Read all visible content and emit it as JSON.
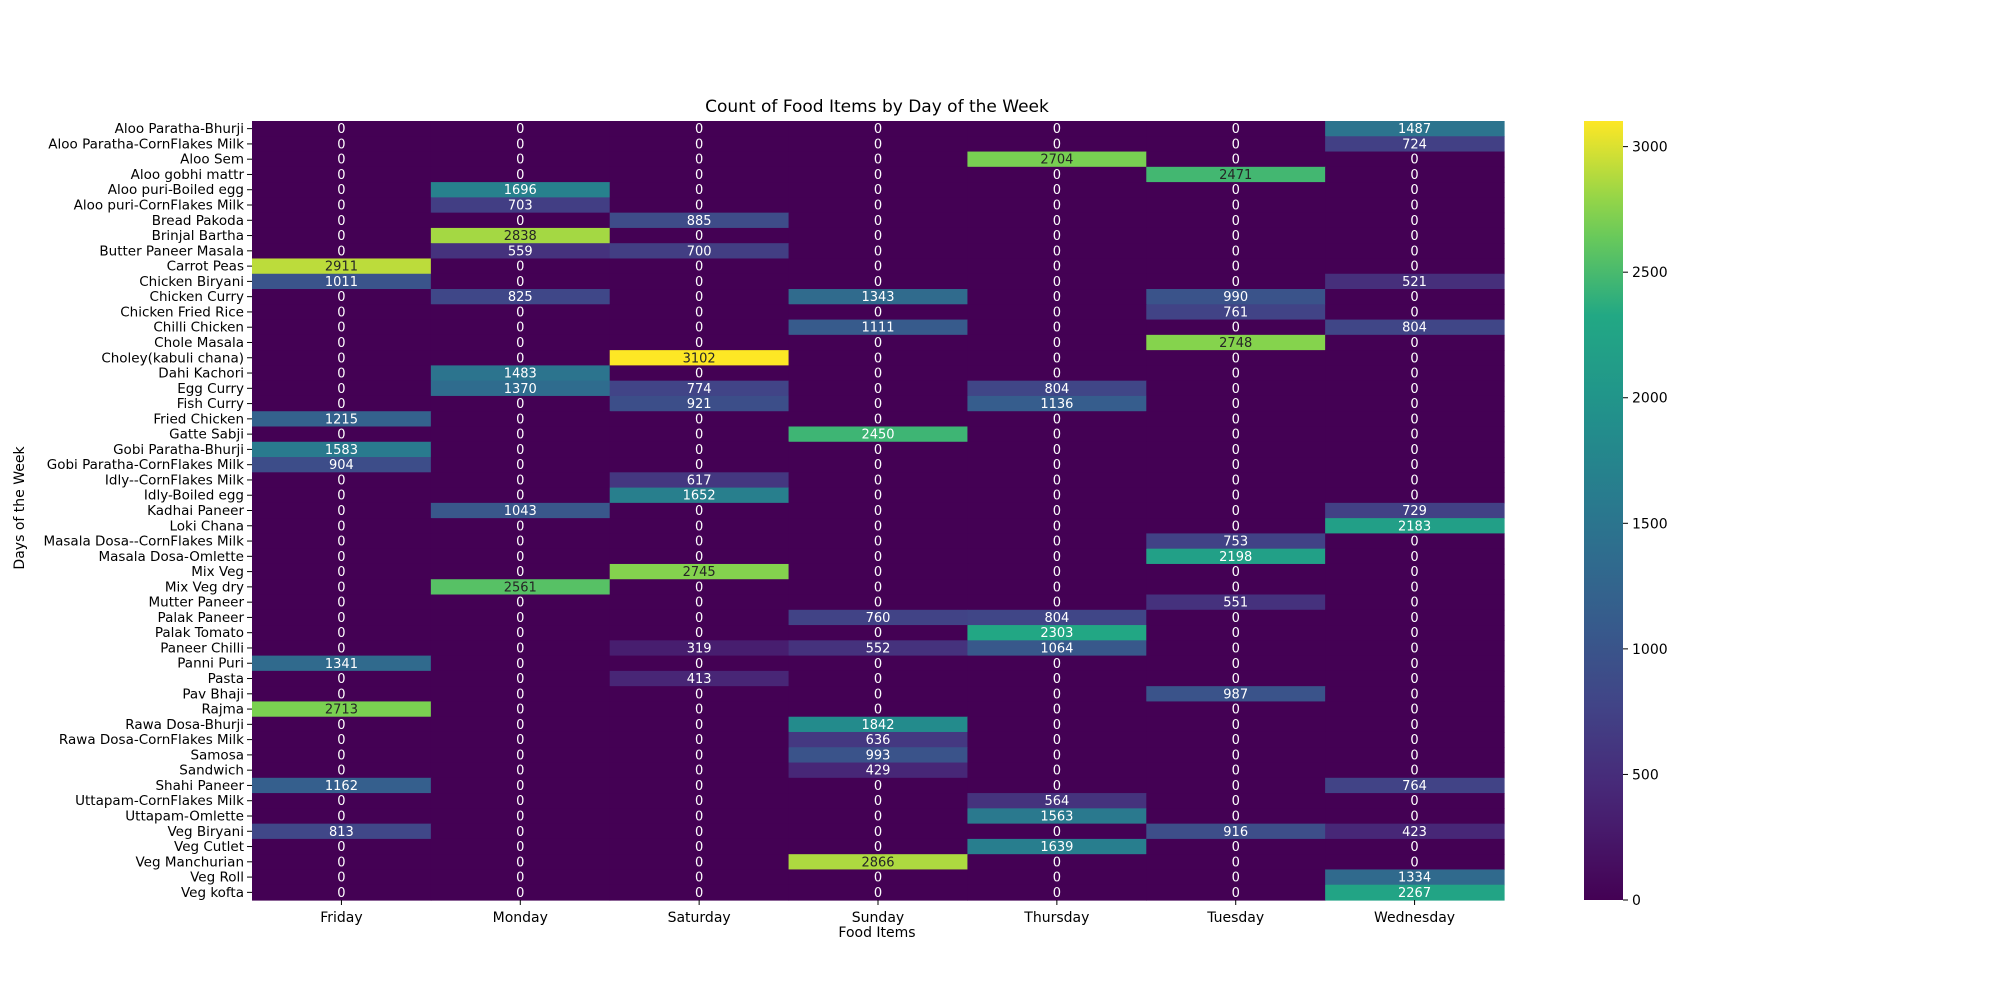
{
  "chart_data": {
    "type": "heatmap",
    "title": "Count of Food Items by Day of the Week",
    "xlabel": "Food Items",
    "ylabel": "Days of the Week",
    "colormap": "viridis",
    "vmin": 0,
    "vmax": 3102,
    "colorbar_ticks": [
      0,
      500,
      1000,
      1500,
      2000,
      2500,
      3000
    ],
    "x_categories": [
      "Friday",
      "Monday",
      "Saturday",
      "Sunday",
      "Thursday",
      "Tuesday",
      "Wednesday"
    ],
    "y_categories": [
      "Aloo Paratha-Bhurji",
      "Aloo Paratha-CornFlakes Milk",
      "Aloo Sem",
      "Aloo gobhi mattr",
      "Aloo puri-Boiled egg",
      "Aloo puri-CornFlakes Milk",
      "Bread Pakoda",
      "Brinjal Bartha",
      "Butter Paneer Masala",
      "Carrot Peas",
      "Chicken Biryani",
      "Chicken Curry",
      "Chicken Fried Rice",
      "Chilli Chicken",
      "Chole Masala",
      "Choley(kabuli chana)",
      "Dahi Kachori",
      "Egg Curry",
      "Fish Curry",
      "Fried Chicken",
      "Gatte Sabji",
      "Gobi Paratha-Bhurji",
      "Gobi Paratha-CornFlakes Milk",
      "Idly--CornFlakes Milk",
      "Idly-Boiled egg",
      "Kadhai Paneer",
      "Loki Chana",
      "Masala Dosa--CornFlakes Milk",
      "Masala Dosa-Omlette",
      "Mix Veg",
      "Mix Veg dry",
      "Mutter Paneer",
      "Palak Paneer",
      "Palak Tomato",
      "Paneer Chilli",
      "Panni Puri",
      "Pasta",
      "Pav Bhaji",
      "Rajma",
      "Rawa Dosa-Bhurji",
      "Rawa Dosa-CornFlakes Milk",
      "Samosa",
      "Sandwich",
      "Shahi Paneer",
      "Uttapam-CornFlakes Milk",
      "Uttapam-Omlette",
      "Veg Biryani",
      "Veg Cutlet",
      "Veg Manchurian",
      "Veg Roll",
      "Veg kofta"
    ],
    "values": [
      [
        0,
        0,
        0,
        0,
        0,
        0,
        1487
      ],
      [
        0,
        0,
        0,
        0,
        0,
        0,
        724
      ],
      [
        0,
        0,
        0,
        0,
        2704,
        0,
        0
      ],
      [
        0,
        0,
        0,
        0,
        0,
        2471,
        0
      ],
      [
        0,
        1696,
        0,
        0,
        0,
        0,
        0
      ],
      [
        0,
        703,
        0,
        0,
        0,
        0,
        0
      ],
      [
        0,
        0,
        885,
        0,
        0,
        0,
        0
      ],
      [
        0,
        2838,
        0,
        0,
        0,
        0,
        0
      ],
      [
        0,
        559,
        700,
        0,
        0,
        0,
        0
      ],
      [
        2911,
        0,
        0,
        0,
        0,
        0,
        0
      ],
      [
        1011,
        0,
        0,
        0,
        0,
        0,
        521
      ],
      [
        0,
        825,
        0,
        1343,
        0,
        990,
        0
      ],
      [
        0,
        0,
        0,
        0,
        0,
        761,
        0
      ],
      [
        0,
        0,
        0,
        1111,
        0,
        0,
        804
      ],
      [
        0,
        0,
        0,
        0,
        0,
        2748,
        0
      ],
      [
        0,
        0,
        3102,
        0,
        0,
        0,
        0
      ],
      [
        0,
        1483,
        0,
        0,
        0,
        0,
        0
      ],
      [
        0,
        1370,
        774,
        0,
        804,
        0,
        0
      ],
      [
        0,
        0,
        921,
        0,
        1136,
        0,
        0
      ],
      [
        1215,
        0,
        0,
        0,
        0,
        0,
        0
      ],
      [
        0,
        0,
        0,
        2450,
        0,
        0,
        0
      ],
      [
        1583,
        0,
        0,
        0,
        0,
        0,
        0
      ],
      [
        904,
        0,
        0,
        0,
        0,
        0,
        0
      ],
      [
        0,
        0,
        617,
        0,
        0,
        0,
        0
      ],
      [
        0,
        0,
        1652,
        0,
        0,
        0,
        0
      ],
      [
        0,
        1043,
        0,
        0,
        0,
        0,
        729
      ],
      [
        0,
        0,
        0,
        0,
        0,
        0,
        2183
      ],
      [
        0,
        0,
        0,
        0,
        0,
        753,
        0
      ],
      [
        0,
        0,
        0,
        0,
        0,
        2198,
        0
      ],
      [
        0,
        0,
        2745,
        0,
        0,
        0,
        0
      ],
      [
        0,
        2561,
        0,
        0,
        0,
        0,
        0
      ],
      [
        0,
        0,
        0,
        0,
        0,
        551,
        0
      ],
      [
        0,
        0,
        0,
        760,
        804,
        0,
        0
      ],
      [
        0,
        0,
        0,
        0,
        2303,
        0,
        0
      ],
      [
        0,
        0,
        319,
        552,
        1064,
        0,
        0
      ],
      [
        1341,
        0,
        0,
        0,
        0,
        0,
        0
      ],
      [
        0,
        0,
        413,
        0,
        0,
        0,
        0
      ],
      [
        0,
        0,
        0,
        0,
        0,
        987,
        0
      ],
      [
        2713,
        0,
        0,
        0,
        0,
        0,
        0
      ],
      [
        0,
        0,
        0,
        1842,
        0,
        0,
        0
      ],
      [
        0,
        0,
        0,
        636,
        0,
        0,
        0
      ],
      [
        0,
        0,
        0,
        993,
        0,
        0,
        0
      ],
      [
        0,
        0,
        0,
        429,
        0,
        0,
        0
      ],
      [
        1162,
        0,
        0,
        0,
        0,
        0,
        764
      ],
      [
        0,
        0,
        0,
        0,
        564,
        0,
        0
      ],
      [
        0,
        0,
        0,
        0,
        1563,
        0,
        0
      ],
      [
        813,
        0,
        0,
        0,
        0,
        916,
        423
      ],
      [
        0,
        0,
        0,
        0,
        1639,
        0,
        0
      ],
      [
        0,
        0,
        0,
        2866,
        0,
        0,
        0
      ],
      [
        0,
        0,
        0,
        0,
        0,
        0,
        1334
      ],
      [
        0,
        0,
        0,
        0,
        0,
        0,
        2267
      ]
    ]
  }
}
